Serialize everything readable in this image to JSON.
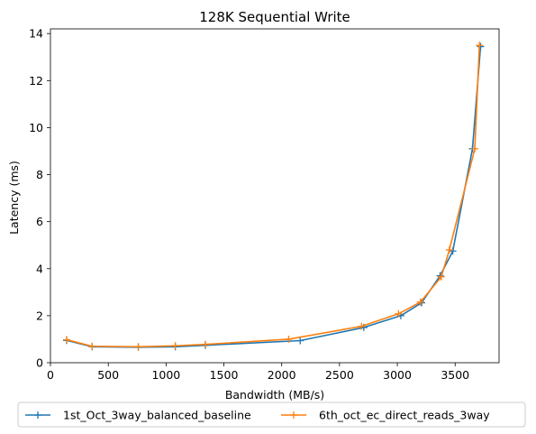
{
  "chart_data": {
    "type": "line",
    "title": "128K  Sequential Write",
    "xlabel": "Bandwidth (MB/s)",
    "ylabel": "Latency (ms)",
    "xlim": [
      0,
      3880
    ],
    "ylim": [
      0,
      14.2
    ],
    "xticks": [
      0,
      500,
      1000,
      1500,
      2000,
      2500,
      3000,
      3500
    ],
    "yticks": [
      0,
      2,
      4,
      6,
      8,
      10,
      12,
      14
    ],
    "grid": false,
    "legend_position": "bottom-outside",
    "marker": "plus",
    "series": [
      {
        "name": "1st_Oct_3way_balanced_baseline",
        "color": "#1f77b4",
        "x": [
          140,
          360,
          760,
          1080,
          1340,
          2160,
          2710,
          3030,
          3210,
          3370,
          3480,
          3650,
          3720
        ],
        "y": [
          0.95,
          0.68,
          0.66,
          0.68,
          0.74,
          0.94,
          1.5,
          2.0,
          2.55,
          3.7,
          4.75,
          9.1,
          13.45
        ]
      },
      {
        "name": "6th_oct_ec_direct_reads_3way",
        "color": "#ff7f0e",
        "x": [
          140,
          360,
          760,
          1080,
          1340,
          2060,
          2690,
          3010,
          3200,
          3380,
          3450,
          3670,
          3710
        ],
        "y": [
          0.98,
          0.7,
          0.68,
          0.72,
          0.78,
          1.0,
          1.55,
          2.08,
          2.58,
          3.65,
          4.8,
          9.1,
          13.5
        ]
      }
    ]
  }
}
